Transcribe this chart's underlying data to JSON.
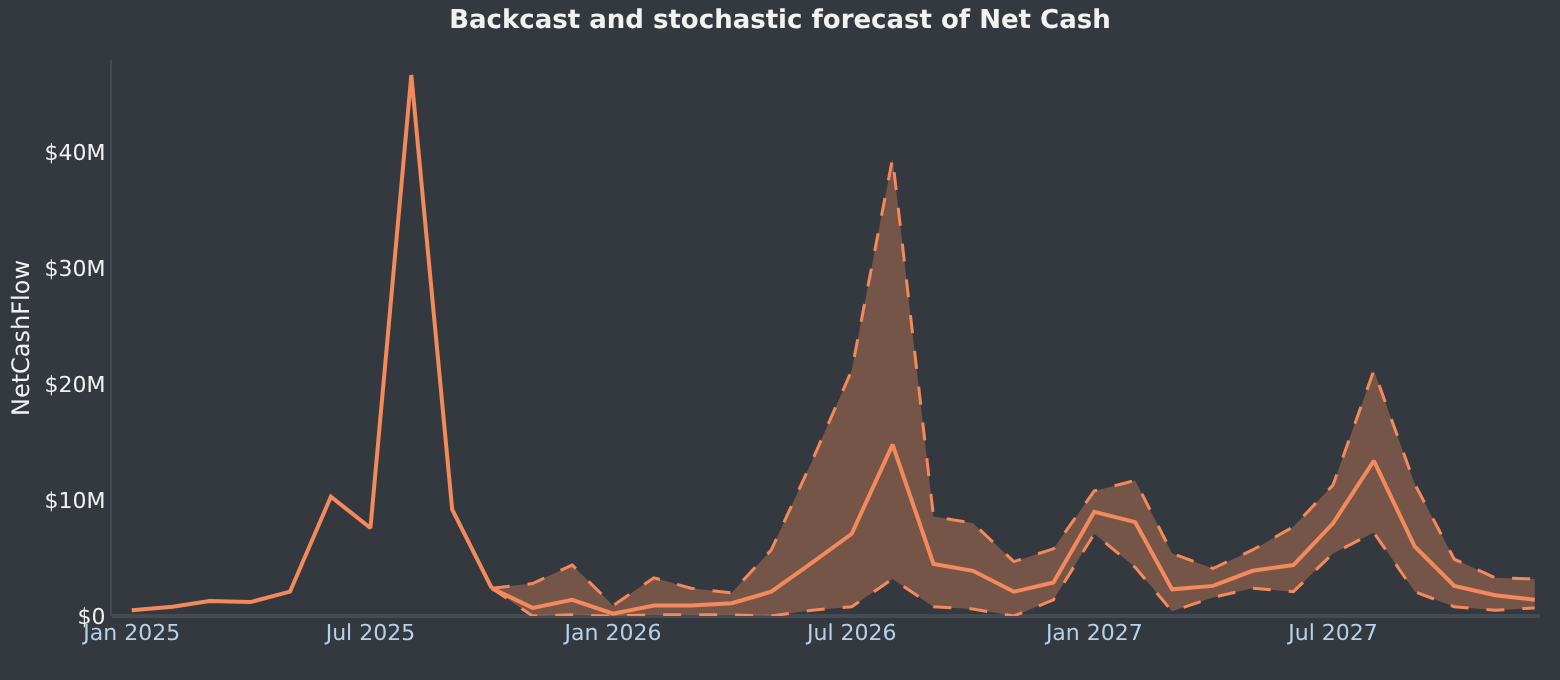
{
  "chart_data": {
    "type": "line",
    "title": "Backcast and stochastic forecast of Net Cash",
    "ylabel": "NetCashFlow",
    "series": [
      {
        "color": "#f4895c",
        "x": [
          "2025-01",
          "2025-02",
          "2025-03",
          "2025-04",
          "2025-05",
          "2025-06",
          "2025-07",
          "2025-08",
          "2025-09",
          "2025-10"
        ],
        "values": [
          0.5,
          0.8,
          1.3,
          1.2,
          2.1,
          10.3,
          7.6,
          46.7,
          9.2,
          2.4
        ]
      },
      {
        "color": "#f4895c",
        "x": [
          "2025-10",
          "2025-11",
          "2025-12",
          "2026-01",
          "2026-02",
          "2026-03",
          "2026-04",
          "2026-05",
          "2026-06",
          "2026-07",
          "2026-08",
          "2026-09",
          "2026-10",
          "2026-11",
          "2026-12",
          "2027-01",
          "2027-02",
          "2027-03",
          "2027-04",
          "2027-05",
          "2027-06",
          "2027-07",
          "2027-08",
          "2027-09",
          "2027-10",
          "2027-11",
          "2027-12"
        ],
        "values": [
          2.4,
          0.7,
          1.4,
          0.2,
          0.9,
          0.9,
          1.1,
          2.1,
          4.6,
          7.1,
          14.8,
          4.5,
          3.9,
          2.1,
          2.9,
          9.0,
          8.1,
          2.3,
          2.6,
          3.9,
          4.4,
          8.0,
          13.4,
          6.0,
          2.6,
          1.8,
          1.4
        ],
        "upper": [
          2.4,
          2.8,
          4.4,
          0.9,
          3.3,
          2.4,
          2.0,
          5.7,
          13.4,
          21.2,
          39.5,
          8.6,
          8.0,
          4.7,
          5.8,
          10.8,
          11.7,
          5.4,
          4.1,
          5.7,
          7.7,
          11.3,
          21.2,
          11.4,
          4.9,
          3.3,
          3.2
        ],
        "lower": [
          2.4,
          0,
          0.1,
          0,
          0.1,
          0.1,
          0.1,
          0,
          0.5,
          0.8,
          3.2,
          0.8,
          0.6,
          0,
          1.4,
          7.1,
          4.2,
          0.4,
          1.6,
          2.4,
          2.1,
          5.4,
          7.2,
          2.1,
          0.8,
          0.5,
          0.7
        ]
      },
      {
        "color": "#f4895c",
        "line_style": "dashed",
        "x": [
          "2025-10",
          "2025-11",
          "2025-12",
          "2026-01",
          "2026-02",
          "2026-03",
          "2026-04",
          "2026-05",
          "2026-06",
          "2026-07",
          "2026-08",
          "2026-09",
          "2026-10",
          "2026-11",
          "2026-12",
          "2027-01",
          "2027-02",
          "2027-03",
          "2027-04",
          "2027-05",
          "2027-06",
          "2027-07",
          "2027-08",
          "2027-09",
          "2027-10",
          "2027-11",
          "2027-12"
        ],
        "values": [
          2.4,
          2.8,
          4.4,
          0.9,
          3.3,
          2.4,
          2.0,
          5.7,
          13.4,
          21.2,
          39.5,
          8.6,
          8.0,
          4.7,
          5.8,
          10.8,
          11.7,
          5.4,
          4.1,
          5.7,
          7.7,
          11.3,
          21.2,
          11.4,
          4.9,
          3.3,
          3.2
        ]
      },
      {
        "color": "#f4895c",
        "line_style": "dashed",
        "x": [
          "2025-10",
          "2025-11",
          "2025-12",
          "2026-01",
          "2026-02",
          "2026-03",
          "2026-04",
          "2026-05",
          "2026-06",
          "2026-07",
          "2026-08",
          "2026-09",
          "2026-10",
          "2026-11",
          "2026-12",
          "2027-01",
          "2027-02",
          "2027-03",
          "2027-04",
          "2027-05",
          "2027-06",
          "2027-07",
          "2027-08",
          "2027-09",
          "2027-10",
          "2027-11",
          "2027-12"
        ],
        "values": [
          2.4,
          0,
          0.1,
          0,
          0.1,
          0.1,
          0.1,
          0,
          0.5,
          0.8,
          3.2,
          0.8,
          0.6,
          0,
          1.4,
          7.1,
          4.2,
          0.4,
          1.6,
          2.4,
          2.1,
          5.4,
          7.2,
          2.1,
          0.8,
          0.5,
          0.7
        ]
      }
    ],
    "xlim": [
      "2024-12-17",
      "2027-12-05"
    ],
    "xticks": [
      {
        "value": "2025-01",
        "label": "Jan 2025"
      },
      {
        "value": "2025-07",
        "label": "Jul 2025"
      },
      {
        "value": "2026-01",
        "label": "Jan 2026"
      },
      {
        "value": "2026-07",
        "label": "Jul 2026"
      },
      {
        "value": "2027-01",
        "label": "Jan 2027"
      },
      {
        "value": "2027-07",
        "label": "Jul 2027"
      }
    ],
    "ylim": [
      0,
      48
    ],
    "yticks": [
      {
        "value": 0,
        "label": "$0"
      },
      {
        "value": 10,
        "label": "$10M"
      },
      {
        "value": 20,
        "label": "$20M"
      },
      {
        "value": 30,
        "label": "$30M"
      },
      {
        "value": 40,
        "label": "$40M"
      }
    ],
    "grid": false,
    "marker": "none",
    "line_style": "solid"
  }
}
